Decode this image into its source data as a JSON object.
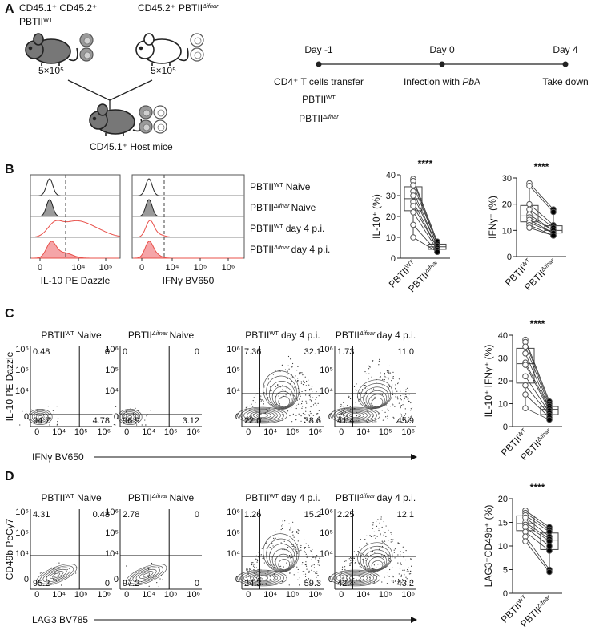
{
  "panel_letters": [
    "A",
    "B",
    "C",
    "D"
  ],
  "genotypes": [
    {
      "base": "PBTII",
      "sup": "WT"
    },
    {
      "base": "PBTII",
      "sup": "Δifnar"
    }
  ],
  "conditions": [
    "Naive",
    "day 4 p.i."
  ],
  "panel_a": {
    "donor_wt_markers": "CD45.1⁺ CD45.2⁺",
    "donor_ko_markers": "CD45.2⁺",
    "cell_counts": [
      "5×10⁵",
      "5×10⁵"
    ],
    "host": "CD45.1⁺ Host mice",
    "timeline": {
      "days": [
        "Day -1",
        "Day 0",
        "Day 4"
      ],
      "events": [
        "CD4⁺ T cells transfer",
        "Infection with ",
        "Take down"
      ],
      "pathogen": {
        "italic": "Pb",
        "rest": "A"
      }
    }
  },
  "panel_b": {
    "histograms": [
      {
        "axis_title": "IL-10 PE Dazzle",
        "ticks": [
          "0",
          "10⁴",
          "10⁵"
        ]
      },
      {
        "axis_title": "IFNγ BV650",
        "ticks": [
          "0",
          "10⁴",
          "10⁵",
          "10⁶"
        ]
      }
    ]
  },
  "flow_ticks": {
    "y": [
      "10⁶",
      "10⁵",
      "10⁴",
      "0"
    ],
    "x": [
      "0",
      "10⁴",
      "10⁵",
      "10⁶"
    ]
  },
  "panel_c": {
    "y_title": "IL-10 PE Dazzle",
    "x_title": "IFNγ BV650",
    "quadrants": [
      [
        "0.48",
        "0",
        "94.7",
        "4.78"
      ],
      [
        "0",
        "0",
        "96.9",
        "3.12"
      ],
      [
        "7.36",
        "32.1",
        "22.0",
        "38.6"
      ],
      [
        "1.73",
        "11.0",
        "41.4",
        "45.9"
      ]
    ]
  },
  "panel_d": {
    "y_title": "CD49b PeCy7",
    "x_title": "LAG3 BV785",
    "quadrants": [
      [
        "4.31",
        "0.48",
        "95.2",
        "0"
      ],
      [
        "2.78",
        "0",
        "97.2",
        "0"
      ],
      [
        "1.26",
        "15.2",
        "24.3",
        "59.3"
      ],
      [
        "2.25",
        "12.1",
        "42.4",
        "43.2"
      ]
    ]
  },
  "chart_data": [
    {
      "type": "box",
      "title": "****",
      "ylabel": "IL-10⁺ (%)",
      "categories": [
        {
          "base": "PBTII",
          "sup": "WT"
        },
        {
          "base": "PBTII",
          "sup": "Δifnar"
        }
      ],
      "ylim": [
        0,
        40
      ],
      "yticks": [
        0,
        10,
        20,
        30,
        40
      ],
      "edge_color": "#555555",
      "series": [
        {
          "color": "#ffffff",
          "values": [
            38,
            37,
            35,
            32,
            30,
            27,
            25,
            22,
            16,
            10
          ]
        },
        {
          "color": "#000000",
          "values": [
            8,
            7,
            7,
            6,
            6,
            5,
            5,
            4,
            3,
            3
          ]
        }
      ]
    },
    {
      "type": "box",
      "title": "****",
      "ylabel": "IFNγ⁺ (%)",
      "categories": [
        {
          "base": "PBTII",
          "sup": "WT"
        },
        {
          "base": "PBTII",
          "sup": "Δifnar"
        }
      ],
      "ylim": [
        0,
        30
      ],
      "yticks": [
        0,
        10,
        20,
        30
      ],
      "edge_color": "#555555",
      "series": [
        {
          "color": "#ffffff",
          "values": [
            28,
            27,
            20,
            18,
            16,
            15,
            14,
            13,
            12,
            11
          ]
        },
        {
          "color": "#000000",
          "values": [
            18,
            17,
            12,
            11,
            10,
            10,
            9,
            9,
            8,
            8
          ]
        }
      ]
    },
    {
      "type": "box",
      "title": "****",
      "ylabel": "IL-10⁺ IFNγ⁺ (%)",
      "categories": [
        {
          "base": "PBTII",
          "sup": "WT"
        },
        {
          "base": "PBTII",
          "sup": "Δifnar"
        }
      ],
      "ylim": [
        0,
        40
      ],
      "yticks": [
        0,
        10,
        20,
        30,
        40
      ],
      "edge_color": "#555555",
      "series": [
        {
          "color": "#ffffff",
          "values": [
            38,
            37,
            35,
            32,
            28,
            27,
            22,
            18,
            14,
            8
          ]
        },
        {
          "color": "#000000",
          "values": [
            11,
            10,
            9,
            8,
            8,
            7,
            6,
            5,
            4,
            3
          ]
        }
      ]
    },
    {
      "type": "box",
      "title": "****",
      "ylabel": "LAG3⁺CD49b⁺ (%)",
      "categories": [
        {
          "base": "PBTII",
          "sup": "WT"
        },
        {
          "base": "PBTII",
          "sup": "Δifnar"
        }
      ],
      "ylim": [
        0,
        20
      ],
      "yticks": [
        0,
        5,
        10,
        15,
        20
      ],
      "edge_color": "#555555",
      "series": [
        {
          "color": "#ffffff",
          "values": [
            17.5,
            17,
            16.5,
            16,
            15,
            14.5,
            14,
            13,
            12,
            11
          ]
        },
        {
          "color": "#000000",
          "values": [
            14,
            13.5,
            13,
            12,
            11.5,
            11,
            10,
            9,
            5,
            4.5
          ]
        }
      ]
    }
  ]
}
